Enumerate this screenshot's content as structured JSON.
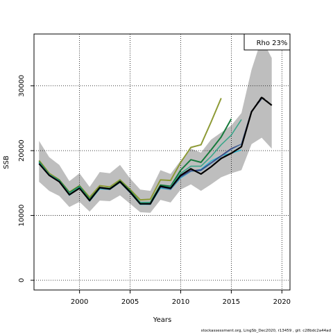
{
  "chart_data": {
    "type": "line",
    "xlabel": "Years",
    "ylabel": "SSB",
    "xlim": [
      1995.5,
      2020.8
    ],
    "ylim": [
      -1500,
      38000
    ],
    "xticks": [
      2000,
      2005,
      2010,
      2015,
      2020
    ],
    "yticks": [
      0,
      10000,
      20000,
      30000
    ],
    "xtick_labels": [
      "2000",
      "2005",
      "2010",
      "2015",
      "2020"
    ],
    "ytick_labels": [
      "0",
      "10000",
      "20000",
      "30000"
    ],
    "grid": true,
    "legend": {
      "placement": "top-right",
      "text": "Rho 23%"
    },
    "footer": "stockassessment.org, LingSb_Dec2020, r13459 , git: c28bdc2a44ad",
    "band": {
      "color": "#bebebe",
      "x": [
        1996,
        1997,
        1998,
        1999,
        2000,
        2001,
        2002,
        2003,
        2004,
        2005,
        2006,
        2007,
        2008,
        2009,
        2010,
        2011,
        2012,
        2013,
        2014,
        2015,
        2016,
        2017,
        2018,
        2019
      ],
      "upper": [
        21500,
        19000,
        17800,
        15300,
        16500,
        14400,
        16700,
        16500,
        17800,
        15700,
        14000,
        13800,
        17000,
        16400,
        18500,
        20300,
        19700,
        21700,
        22800,
        23900,
        25800,
        32500,
        37300,
        34300
      ],
      "lower": [
        15200,
        13800,
        13000,
        11300,
        12100,
        10600,
        12300,
        12200,
        13100,
        11800,
        10500,
        10400,
        12400,
        12000,
        14000,
        14800,
        13800,
        14800,
        15900,
        16500,
        17000,
        21000,
        22000,
        20300
      ]
    },
    "series": [
      {
        "color": "#000000",
        "width": 2.2,
        "dash": false,
        "x": [
          1996,
          1997,
          1998,
          1999,
          2000,
          2001,
          2002,
          2003,
          2004,
          2005,
          2006,
          2007,
          2008,
          2009,
          2010,
          2011,
          2012,
          2013,
          2014,
          2015,
          2016,
          2017,
          2018,
          2019
        ],
        "values": [
          18000,
          16200,
          15200,
          13200,
          14200,
          12300,
          14300,
          14100,
          15200,
          13600,
          11800,
          11800,
          14500,
          14200,
          16200,
          17200,
          16400,
          17500,
          18800,
          19600,
          20600,
          26000,
          28200,
          27000
        ]
      },
      {
        "color": "#000000",
        "width": 1.8,
        "dash": true,
        "x": [
          2017,
          2018,
          2019
        ],
        "values": [
          26000,
          28300,
          27000
        ]
      },
      {
        "color": "#4c7ba8",
        "width": 1.3,
        "dash": false,
        "x": [
          1996,
          1997,
          1998,
          1999,
          2000,
          2001,
          2002,
          2003,
          2004,
          2005,
          2006,
          2007,
          2008,
          2009,
          2010,
          2011,
          2012,
          2013,
          2014,
          2015,
          2016,
          2017,
          2018
        ],
        "values": [
          18000,
          16200,
          15200,
          13200,
          14200,
          12200,
          14200,
          14000,
          15100,
          13500,
          11800,
          11700,
          14300,
          14000,
          15900,
          16800,
          16900,
          18000,
          19100,
          20200,
          21000,
          26100,
          28000
        ]
      },
      {
        "color": "#322a6e",
        "width": 1.6,
        "dash": false,
        "x": [
          2008,
          2009,
          2010,
          2011,
          2012,
          2013,
          2014,
          2015,
          2016,
          2017,
          2018
        ],
        "values": [
          14400,
          14100,
          16000,
          16900,
          17000,
          18100,
          19200,
          20300,
          21000,
          26100,
          28000
        ]
      },
      {
        "color": "#28b8d4",
        "width": 1.4,
        "dash": false,
        "x": [
          1996,
          1997,
          1998,
          1999,
          2000,
          2001,
          2002,
          2003,
          2004,
          2005,
          2006,
          2007,
          2008,
          2009,
          2010,
          2011,
          2012,
          2013,
          2014,
          2015,
          2016
        ],
        "values": [
          18100,
          16300,
          15300,
          13100,
          14300,
          12200,
          14100,
          14000,
          15100,
          13500,
          11700,
          11700,
          14200,
          14000,
          15800,
          16800,
          17100,
          18400,
          19200,
          19600,
          20100
        ]
      },
      {
        "color": "#3aa68a",
        "width": 1.6,
        "dash": false,
        "x": [
          1996,
          1997,
          1998,
          1999,
          2000,
          2001,
          2002,
          2003,
          2004,
          2005,
          2006,
          2007,
          2008,
          2009,
          2010,
          2011,
          2012,
          2013,
          2014,
          2015,
          2016
        ],
        "values": [
          18200,
          16300,
          15300,
          13400,
          14400,
          12400,
          14300,
          14200,
          15200,
          13700,
          12000,
          12000,
          14500,
          14400,
          16500,
          17600,
          17600,
          19100,
          20900,
          22400,
          24800
        ]
      },
      {
        "color": "#167a3c",
        "width": 2.0,
        "dash": false,
        "x": [
          1996,
          1997,
          1998,
          1999,
          2000,
          2001,
          2002,
          2003,
          2004,
          2005,
          2006,
          2007,
          2008,
          2009,
          2010,
          2011,
          2012,
          2013,
          2014,
          2015
        ],
        "values": [
          18300,
          16300,
          15400,
          13500,
          14500,
          12500,
          14300,
          14100,
          15300,
          13800,
          12000,
          12000,
          14700,
          14500,
          17000,
          18600,
          18200,
          20100,
          22100,
          24900
        ]
      },
      {
        "color": "#8d9a35",
        "width": 2.0,
        "dash": false,
        "x": [
          1996,
          1997,
          1998,
          1999,
          2000,
          2001,
          2002,
          2003,
          2004,
          2005,
          2006,
          2007,
          2008,
          2009,
          2010,
          2011,
          2012,
          2013,
          2014
        ],
        "values": [
          18500,
          16500,
          15500,
          13600,
          14600,
          12800,
          14600,
          14400,
          15500,
          14000,
          12400,
          12500,
          15500,
          15400,
          18200,
          20500,
          20900,
          24400,
          28100
        ]
      }
    ]
  }
}
